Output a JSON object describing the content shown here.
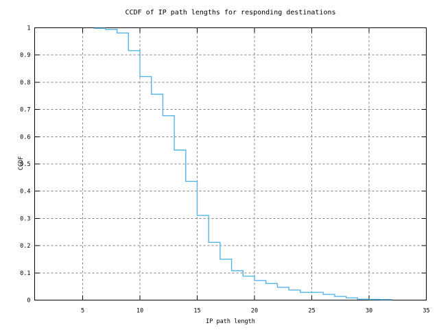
{
  "chart_data": {
    "type": "line",
    "line_style": "steps-post",
    "title": "CCDF of IP path lengths for responding destinations",
    "xlabel": "IP path length",
    "ylabel": "CCDF",
    "xlim": [
      0.8,
      35
    ],
    "ylim": [
      0,
      1
    ],
    "grid": true,
    "legend": "none",
    "line_color": "#56b4e9",
    "grid_color": "#808080",
    "border_color": "#000000",
    "background_color": "#ffffff",
    "x_ticks": {
      "values": [
        5,
        10,
        15,
        20,
        25,
        30,
        35
      ],
      "labels": [
        "5",
        "10",
        "15",
        "20",
        "25",
        "30",
        "35"
      ]
    },
    "y_ticks": {
      "values": [
        0,
        0.1,
        0.2,
        0.3,
        0.4,
        0.5,
        0.6,
        0.7,
        0.8,
        0.9,
        1
      ],
      "labels": [
        "0",
        "0.1",
        "0.2",
        "0.3",
        "0.4",
        "0.5",
        "0.6",
        "0.7",
        "0.8",
        "0.9",
        "1"
      ]
    },
    "series": [
      {
        "name": "CCDF of IP path lengths",
        "x": [
          6,
          7,
          8,
          9,
          10,
          11,
          12,
          13,
          14,
          15,
          16,
          17,
          18,
          19,
          20,
          21,
          22,
          23,
          24,
          25,
          26,
          27,
          28,
          29,
          30,
          31,
          32
        ],
        "y": [
          0.998,
          0.994,
          0.981,
          0.916,
          0.821,
          0.756,
          0.677,
          0.551,
          0.436,
          0.311,
          0.212,
          0.15,
          0.108,
          0.088,
          0.072,
          0.061,
          0.047,
          0.037,
          0.0285,
          0.0285,
          0.021,
          0.0134,
          0.0084,
          0.0033,
          0.0025,
          0.002,
          0.002
        ]
      }
    ]
  }
}
